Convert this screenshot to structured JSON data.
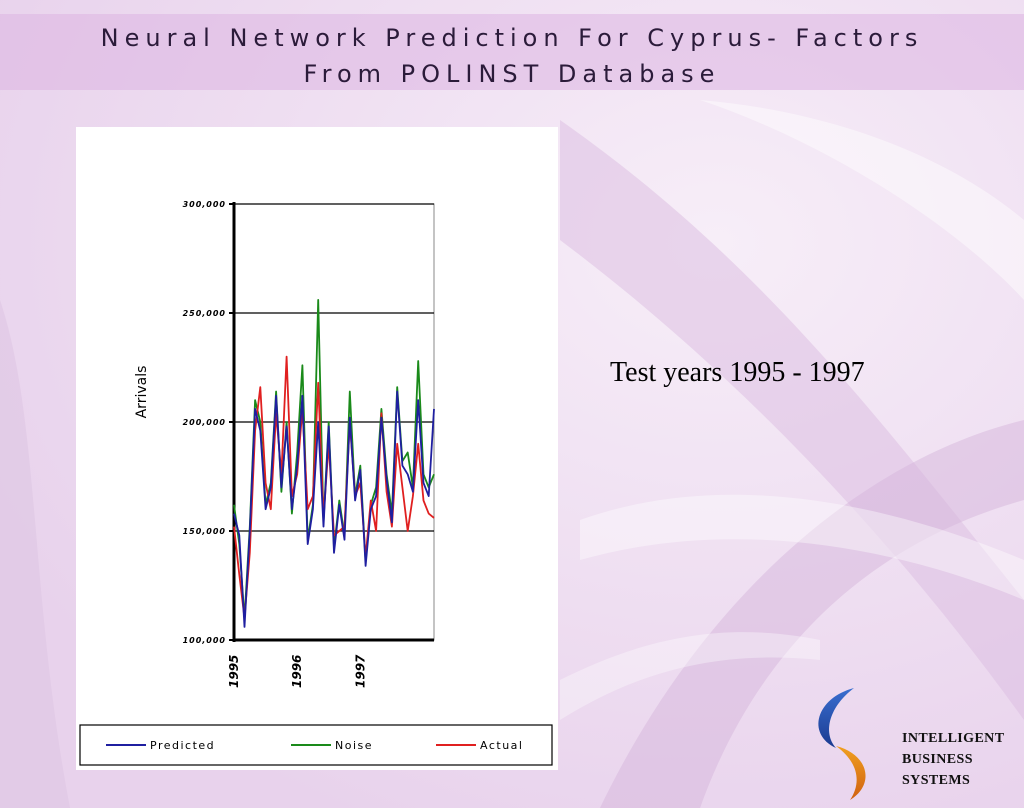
{
  "slide": {
    "title_line1": "Neural Network Prediction For Cyprus- Factors",
    "title_line2": "From POLINST Database",
    "caption": "Test years 1995 - 1997",
    "logo": {
      "line1": "INTELLIGENT",
      "line2": "BUSINESS",
      "line3": "SYSTEMS",
      "icon": "crescent-swirl-logo-icon"
    }
  },
  "chart_data": {
    "type": "line",
    "title": "",
    "xlabel": "",
    "ylabel": "Arrivals",
    "ylim": [
      100000,
      300000
    ],
    "yticks": [
      100000,
      150000,
      200000,
      250000,
      300000
    ],
    "ytick_labels": [
      "100,000",
      "150,000",
      "200,000",
      "250,000",
      "300,000"
    ],
    "x_tick_labels": [
      "1995",
      "1996",
      "1997"
    ],
    "x_tick_index": [
      0,
      12,
      24
    ],
    "grid": "horizontal",
    "legend": "bottom",
    "series": [
      {
        "name": "Predicted",
        "color": "#1f1fa0",
        "values": [
          158000,
          148000,
          106000,
          150000,
          206000,
          196000,
          160000,
          170000,
          212000,
          170000,
          198000,
          160000,
          180000,
          212000,
          144000,
          160000,
          200000,
          152000,
          198000,
          140000,
          162000,
          146000,
          202000,
          164000,
          178000,
          134000,
          160000,
          166000,
          202000,
          174000,
          154000,
          214000,
          180000,
          176000,
          168000,
          210000,
          172000,
          166000,
          206000
        ]
      },
      {
        "name": "Noise",
        "color": "#1a8a1a",
        "values": [
          162000,
          144000,
          110000,
          152000,
          210000,
          200000,
          162000,
          172000,
          214000,
          168000,
          200000,
          158000,
          186000,
          226000,
          146000,
          162000,
          256000,
          154000,
          200000,
          142000,
          164000,
          148000,
          214000,
          166000,
          180000,
          136000,
          162000,
          170000,
          206000,
          176000,
          158000,
          216000,
          182000,
          186000,
          170000,
          228000,
          176000,
          170000,
          176000
        ]
      },
      {
        "name": "Actual",
        "color": "#e02020",
        "values": [
          152000,
          130000,
          110000,
          140000,
          196000,
          216000,
          172000,
          160000,
          204000,
          176000,
          230000,
          166000,
          176000,
          206000,
          160000,
          166000,
          218000,
          156000,
          190000,
          148000,
          150000,
          152000,
          200000,
          166000,
          172000,
          138000,
          164000,
          150000,
          204000,
          168000,
          152000,
          190000,
          170000,
          150000,
          166000,
          190000,
          164000,
          158000,
          156000
        ]
      }
    ]
  }
}
